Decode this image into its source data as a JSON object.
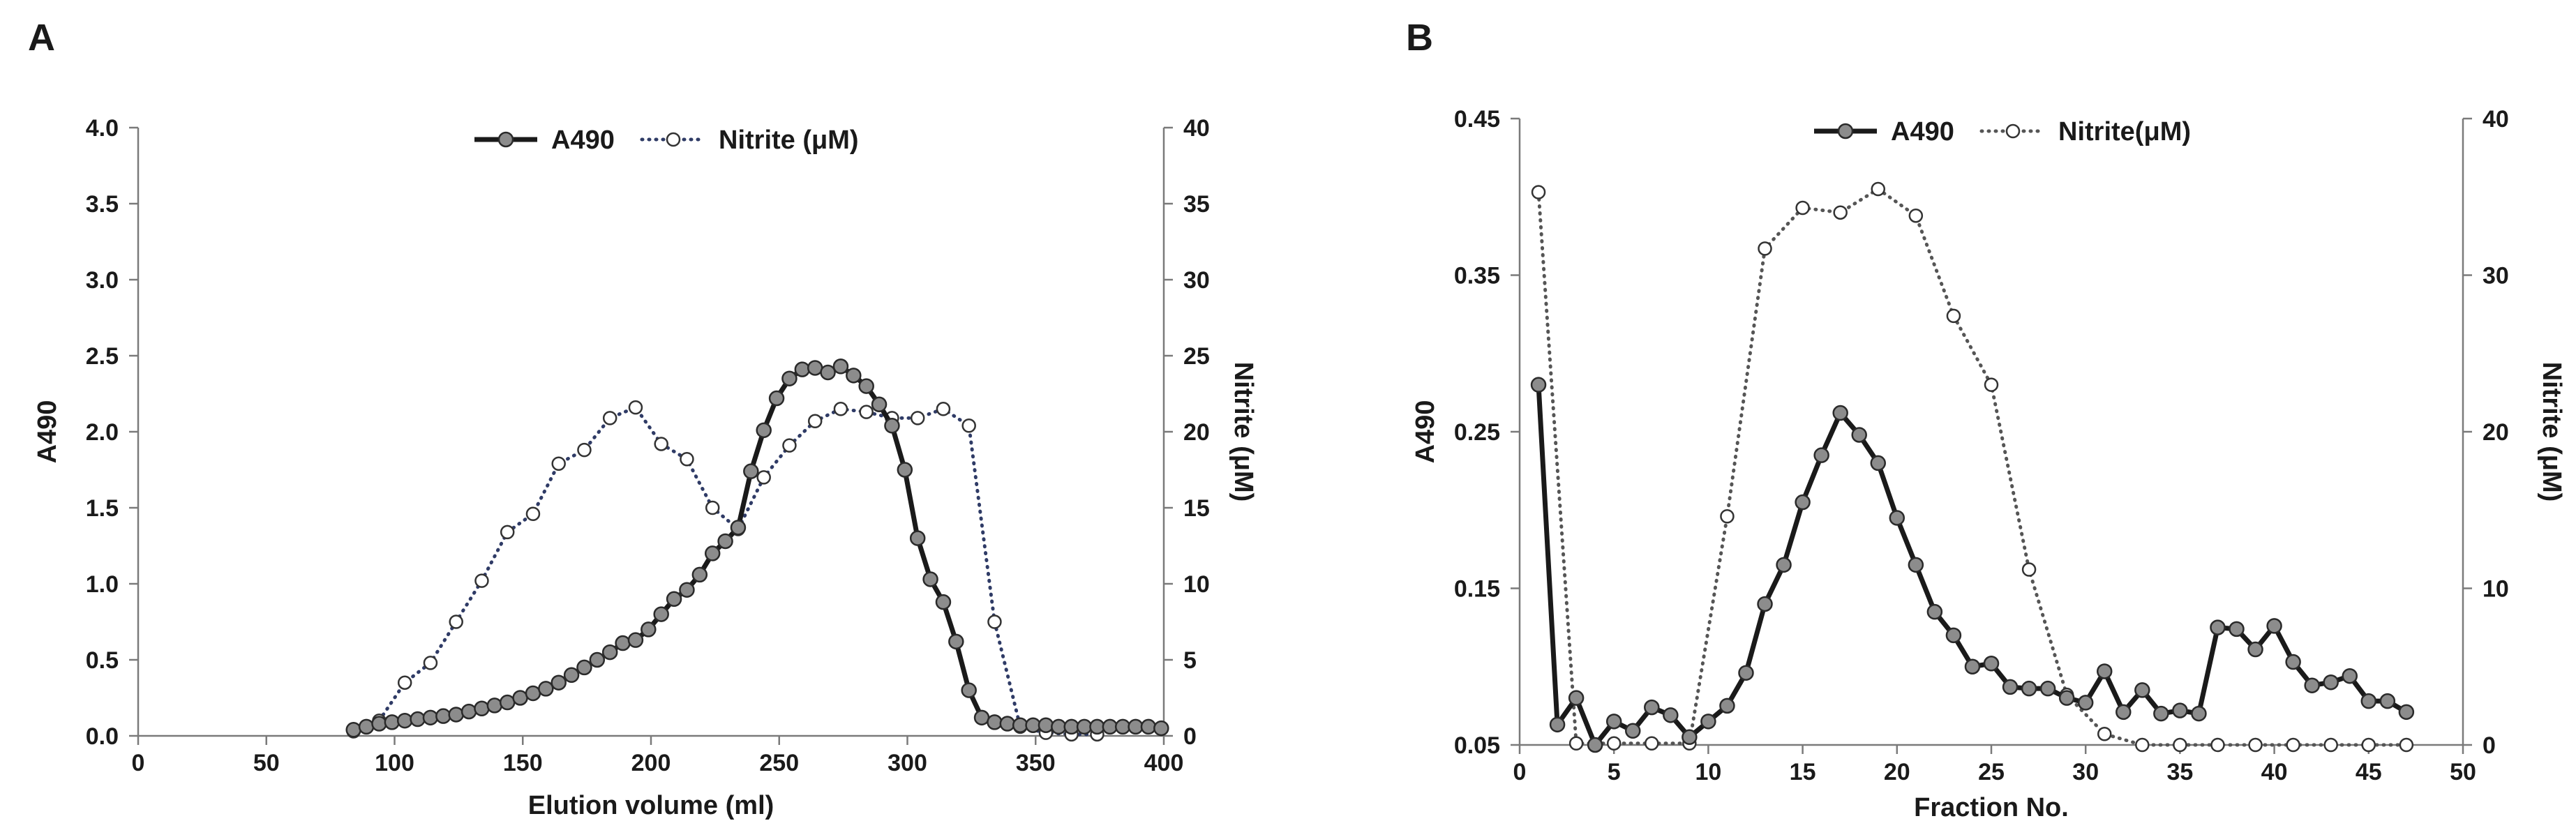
{
  "chart_data": [
    {
      "panel": "A",
      "type": "line",
      "xlabel": "Elution volume (ml)",
      "ylabel": "A490",
      "y2label": "Nitrite (μM)",
      "xlim": [
        0,
        400
      ],
      "ylim": [
        0,
        4
      ],
      "y2lim": [
        0,
        40
      ],
      "x_ticks": [
        "0",
        "50",
        "100",
        "150",
        "200",
        "250",
        "300",
        "350",
        "400"
      ],
      "y_ticks": [
        "0.0",
        "0.5",
        "1.0",
        "1.5",
        "2.0",
        "2.5",
        "3.0",
        "3.5",
        "4.0"
      ],
      "y2_ticks": [
        "0",
        "5",
        "10",
        "15",
        "20",
        "25",
        "30",
        "35",
        "40"
      ],
      "grid": false,
      "legend": "top-center",
      "series": [
        {
          "name": "A490",
          "axis": "left",
          "style": "solid",
          "marker": "filled-circle",
          "color": "#1a1a1a",
          "marker_color": "#8c8c8c",
          "x": [
            84,
            89,
            94,
            99,
            104,
            109,
            114,
            119,
            124,
            129,
            134,
            139,
            144,
            149,
            154,
            159,
            164,
            169,
            174,
            179,
            184,
            189,
            194,
            199,
            204,
            209,
            214,
            219,
            224,
            229,
            234,
            239,
            244,
            249,
            254,
            259,
            264,
            269,
            274,
            279,
            284,
            289,
            294,
            299,
            304,
            309,
            314,
            319,
            324,
            329,
            334,
            339,
            344,
            349,
            354,
            359,
            364,
            369,
            374,
            379,
            384,
            389,
            394,
            399
          ],
          "y": [
            0.04,
            0.06,
            0.08,
            0.09,
            0.1,
            0.11,
            0.12,
            0.13,
            0.14,
            0.16,
            0.18,
            0.2,
            0.22,
            0.25,
            0.28,
            0.31,
            0.35,
            0.4,
            0.45,
            0.5,
            0.55,
            0.61,
            0.63,
            0.7,
            0.8,
            0.9,
            0.96,
            1.06,
            1.2,
            1.28,
            1.37,
            1.74,
            2.01,
            2.22,
            2.35,
            2.41,
            2.42,
            2.39,
            2.43,
            2.37,
            2.3,
            2.18,
            2.04,
            1.75,
            1.3,
            1.03,
            0.88,
            0.62,
            0.3,
            0.12,
            0.09,
            0.08,
            0.07,
            0.07,
            0.07,
            0.06,
            0.06,
            0.06,
            0.06,
            0.06,
            0.06,
            0.06,
            0.06,
            0.05
          ]
        },
        {
          "name": "Nitrite (μM)",
          "axis": "right",
          "style": "dotted",
          "marker": "open-circle",
          "color": "#2f3b66",
          "x": [
            84,
            94,
            104,
            114,
            124,
            134,
            144,
            154,
            164,
            174,
            184,
            194,
            204,
            214,
            224,
            234,
            244,
            254,
            264,
            274,
            284,
            294,
            304,
            314,
            324,
            334,
            344,
            354,
            364,
            374
          ],
          "y": [
            0.3,
            1.0,
            3.5,
            4.8,
            7.5,
            10.2,
            13.4,
            14.6,
            17.9,
            18.8,
            20.9,
            21.6,
            19.2,
            18.2,
            15.0,
            13.6,
            17.0,
            19.1,
            20.7,
            21.5,
            21.3,
            20.9,
            20.9,
            21.5,
            20.4,
            7.5,
            0.6,
            0.2,
            0.1,
            0.1
          ]
        }
      ]
    },
    {
      "panel": "B",
      "type": "line",
      "xlabel": "Fraction No.",
      "ylabel": "A490",
      "y2label": "Nitrite (μM)",
      "xlim": [
        0,
        50
      ],
      "ylim": [
        0.05,
        0.45
      ],
      "y2lim": [
        0,
        40
      ],
      "x_ticks": [
        "0",
        "5",
        "10",
        "15",
        "20",
        "25",
        "30",
        "35",
        "40",
        "45",
        "50"
      ],
      "y_ticks": [
        "0.05",
        "0.15",
        "0.25",
        "0.35",
        "0.45"
      ],
      "y_tick_values": [
        0.05,
        0.15,
        0.25,
        0.35,
        0.45
      ],
      "y2_ticks": [
        "0",
        "10",
        "20",
        "30",
        "40"
      ],
      "grid": false,
      "legend": "top-center",
      "series": [
        {
          "name": "A490",
          "axis": "left",
          "style": "solid",
          "marker": "filled-circle",
          "color": "#1a1a1a",
          "marker_color": "#8c8c8c",
          "x": [
            1,
            2,
            3,
            4,
            5,
            6,
            7,
            8,
            9,
            10,
            11,
            12,
            13,
            14,
            15,
            16,
            17,
            18,
            19,
            20,
            21,
            22,
            23,
            24,
            25,
            26,
            27,
            28,
            29,
            30,
            31,
            32,
            33,
            34,
            35,
            36,
            37,
            38,
            39,
            40,
            41,
            42,
            43,
            44,
            45,
            46,
            47
          ],
          "y": [
            0.28,
            0.063,
            0.08,
            0.05,
            0.065,
            0.059,
            0.074,
            0.069,
            0.055,
            0.065,
            0.075,
            0.096,
            0.14,
            0.165,
            0.205,
            0.235,
            0.262,
            0.248,
            0.23,
            0.195,
            0.165,
            0.135,
            0.12,
            0.1,
            0.102,
            0.087,
            0.086,
            0.086,
            0.08,
            0.077,
            0.097,
            0.071,
            0.085,
            0.07,
            0.072,
            0.07,
            0.125,
            0.124,
            0.111,
            0.126,
            0.103,
            0.088,
            0.09,
            0.094,
            0.078,
            0.078,
            0.071
          ]
        },
        {
          "name": "Nitrite(μM)",
          "axis": "right",
          "style": "dotted",
          "marker": "open-circle",
          "color": "#555555",
          "x": [
            1,
            3,
            5,
            7,
            9,
            11,
            13,
            15,
            17,
            19,
            21,
            23,
            25,
            27,
            29,
            31,
            33,
            35,
            37,
            39,
            41,
            43,
            45,
            47
          ],
          "y": [
            35.3,
            0.1,
            0.1,
            0.1,
            0.1,
            14.6,
            31.7,
            34.3,
            34.0,
            35.5,
            33.8,
            27.4,
            23.0,
            11.2,
            3.2,
            0.7,
            0.0,
            0.0,
            0.0,
            0.0,
            0.0,
            0.0,
            0.0,
            0.0
          ]
        }
      ]
    }
  ]
}
